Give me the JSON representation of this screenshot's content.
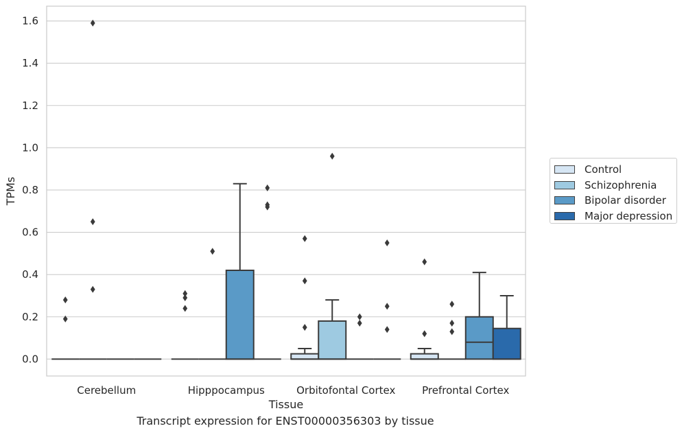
{
  "caption": "Transcript expression for ENST00000356303 by tissue",
  "legend": {
    "items": [
      {
        "label": "Control",
        "color": "#d6e6f4"
      },
      {
        "label": "Schizophrenia",
        "color": "#9ecae1"
      },
      {
        "label": "Bipolar disorder",
        "color": "#5a9ac7"
      },
      {
        "label": "Major depression",
        "color": "#2a6aab"
      }
    ]
  },
  "chart_data": {
    "type": "box",
    "xlabel": "Tissue",
    "ylabel": "TPMs",
    "categories": [
      "Cerebellum",
      "Hipppocampus",
      "Orbitofontal Cortex",
      "Prefrontal Cortex"
    ],
    "ylim": [
      -0.08,
      1.67
    ],
    "yticks": [
      0.0,
      0.2,
      0.4,
      0.6,
      0.8,
      1.0,
      1.2,
      1.4,
      1.6
    ],
    "ytick_labels": [
      "0.0",
      "0.2",
      "0.4",
      "0.6",
      "0.8",
      "1.0",
      "1.2",
      "1.4",
      "1.6"
    ],
    "grid": "horizontal",
    "legend_position": "right",
    "series": [
      {
        "name": "Control",
        "color": "#d6e6f4",
        "boxes": [
          {
            "q1": 0,
            "median": 0,
            "q3": 0,
            "whislo": 0,
            "whishi": 0,
            "fliers": [
              0.28,
              0.19
            ]
          },
          {
            "q1": 0,
            "median": 0,
            "q3": 0,
            "whislo": 0,
            "whishi": 0,
            "fliers": [
              0.31,
              0.29,
              0.24
            ]
          },
          {
            "q1": 0,
            "median": 0,
            "q3": 0.025,
            "whislo": 0,
            "whishi": 0.05,
            "fliers": [
              0.57,
              0.37,
              0.15
            ]
          },
          {
            "q1": 0,
            "median": 0,
            "q3": 0.025,
            "whislo": 0,
            "whishi": 0.05,
            "fliers": [
              0.46,
              0.12
            ]
          }
        ]
      },
      {
        "name": "Schizophrenia",
        "color": "#9ecae1",
        "boxes": [
          {
            "q1": 0,
            "median": 0,
            "q3": 0,
            "whislo": 0,
            "whishi": 0,
            "fliers": [
              1.59,
              0.65,
              0.33
            ]
          },
          {
            "q1": 0,
            "median": 0,
            "q3": 0,
            "whislo": 0,
            "whishi": 0,
            "fliers": [
              0.51
            ]
          },
          {
            "q1": 0,
            "median": 0,
            "q3": 0.18,
            "whislo": 0,
            "whishi": 0.28,
            "fliers": [
              0.96
            ]
          },
          {
            "q1": 0,
            "median": 0,
            "q3": 0,
            "whislo": 0,
            "whishi": 0,
            "fliers": [
              0.26,
              0.17,
              0.13
            ]
          }
        ]
      },
      {
        "name": "Bipolar disorder",
        "color": "#5a9ac7",
        "boxes": [
          {
            "q1": 0,
            "median": 0,
            "q3": 0,
            "whislo": 0,
            "whishi": 0,
            "fliers": []
          },
          {
            "q1": 0,
            "median": 0,
            "q3": 0.42,
            "whislo": 0,
            "whishi": 0.83,
            "fliers": []
          },
          {
            "q1": 0,
            "median": 0,
            "q3": 0,
            "whislo": 0,
            "whishi": 0,
            "fliers": [
              0.2,
              0.17
            ]
          },
          {
            "q1": 0,
            "median": 0.08,
            "q3": 0.2,
            "whislo": 0,
            "whishi": 0.41,
            "fliers": []
          }
        ]
      },
      {
        "name": "Major depression",
        "color": "#2a6aab",
        "boxes": [
          {
            "q1": 0,
            "median": 0,
            "q3": 0,
            "whislo": 0,
            "whishi": 0,
            "fliers": []
          },
          {
            "q1": 0,
            "median": 0,
            "q3": 0,
            "whislo": 0,
            "whishi": 0,
            "fliers": [
              0.81,
              0.73,
              0.72
            ]
          },
          {
            "q1": 0,
            "median": 0,
            "q3": 0,
            "whislo": 0,
            "whishi": 0,
            "fliers": [
              0.55,
              0.25,
              0.14
            ]
          },
          {
            "q1": 0,
            "median": 0,
            "q3": 0.145,
            "whislo": 0,
            "whishi": 0.3,
            "fliers": []
          }
        ]
      }
    ]
  }
}
